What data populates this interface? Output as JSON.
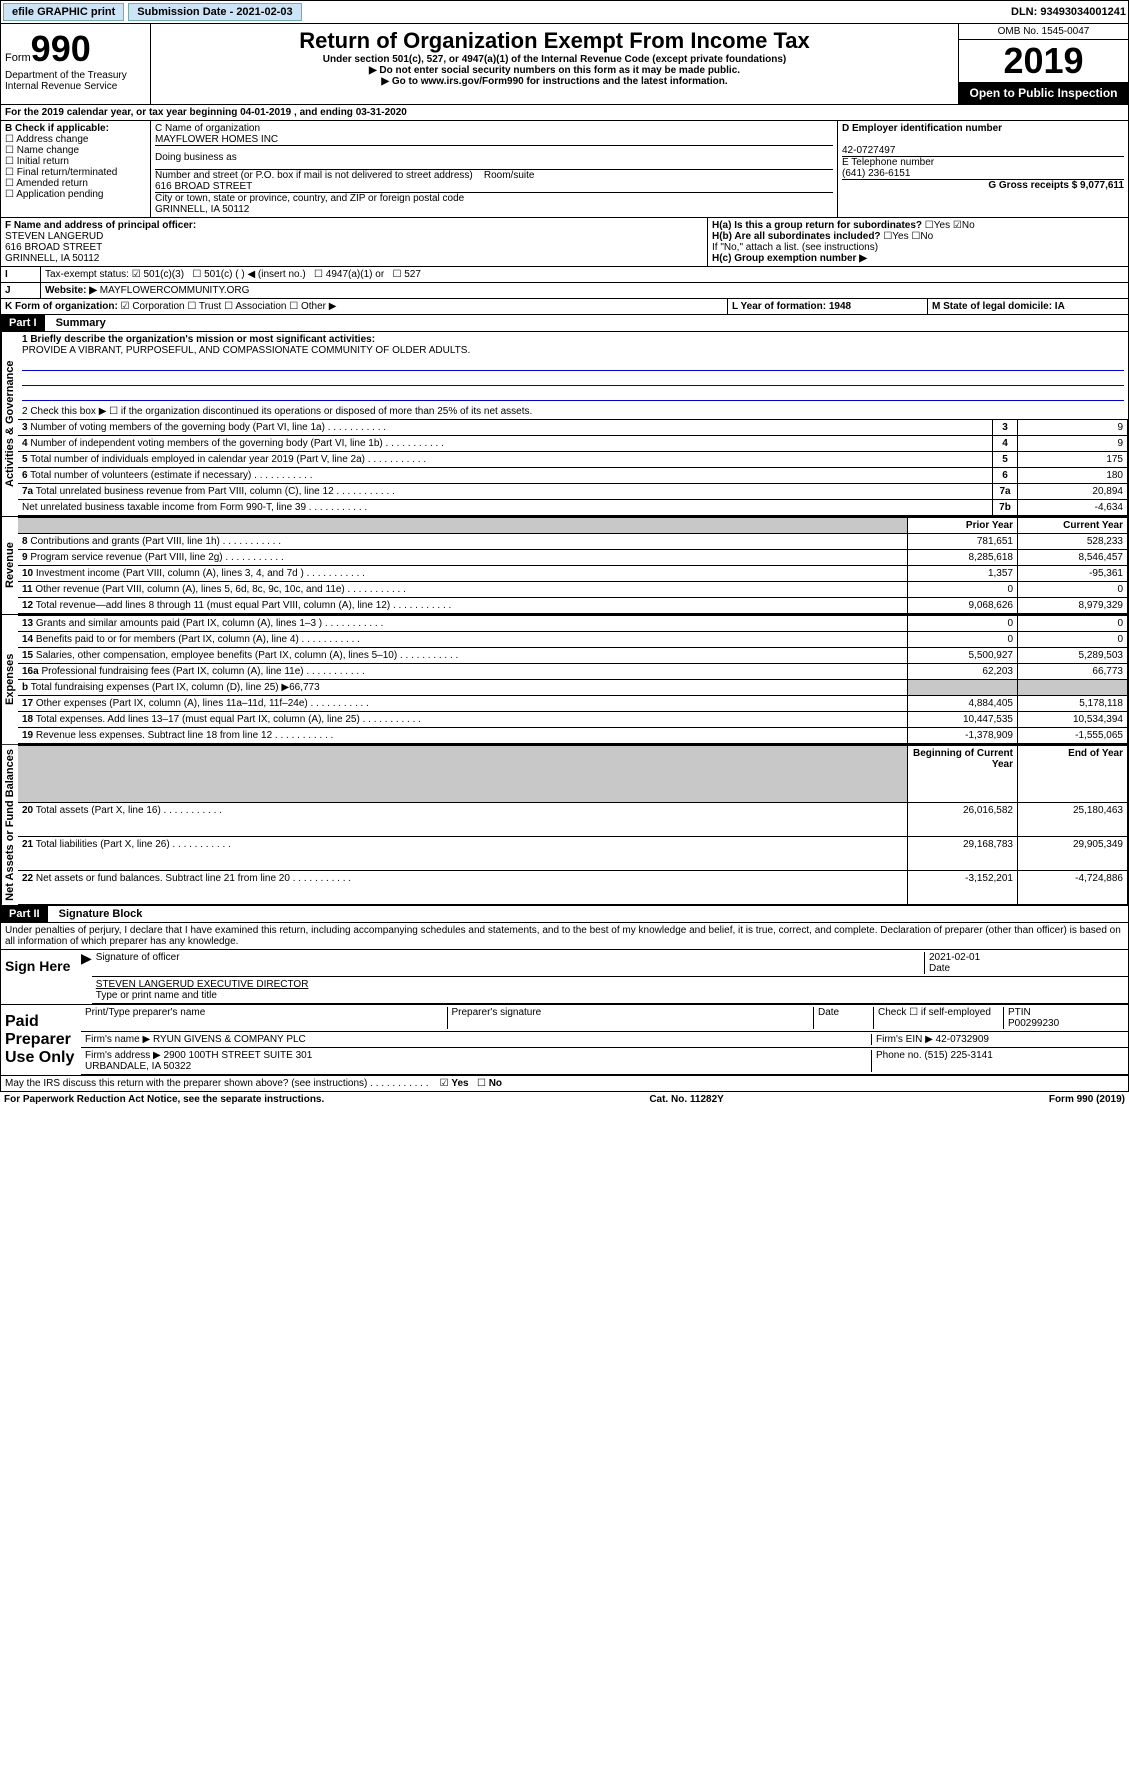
{
  "top": {
    "efile": "efile GRAPHIC print",
    "subdate_lbl": "Submission Date - 2021-02-03",
    "dln": "DLN: 93493034001241"
  },
  "header": {
    "form": "Form",
    "num": "990",
    "dept": "Department of the Treasury\nInternal Revenue Service",
    "title": "Return of Organization Exempt From Income Tax",
    "sub1": "Under section 501(c), 527, or 4947(a)(1) of the Internal Revenue Code (except private foundations)",
    "sub2": "▶ Do not enter social security numbers on this form as it may be made public.",
    "sub3": "▶ Go to www.irs.gov/Form990 for instructions and the latest information.",
    "omb": "OMB No. 1545-0047",
    "year": "2019",
    "open": "Open to Public Inspection"
  },
  "a": {
    "period": "For the 2019 calendar year, or tax year beginning 04-01-2019   , and ending 03-31-2020",
    "b_lbl": "B Check if applicable:",
    "b_opts": [
      "Address change",
      "Name change",
      "Initial return",
      "Final return/terminated",
      "Amended return",
      "Application pending"
    ],
    "c_lbl": "C Name of organization",
    "c_name": "MAYFLOWER HOMES INC",
    "dba_lbl": "Doing business as",
    "addr_lbl": "Number and street (or P.O. box if mail is not delivered to street address)",
    "addr": "616 BROAD STREET",
    "room_lbl": "Room/suite",
    "city_lbl": "City or town, state or province, country, and ZIP or foreign postal code",
    "city": "GRINNELL, IA  50112",
    "d_lbl": "D Employer identification number",
    "d_val": "42-0727497",
    "e_lbl": "E Telephone number",
    "e_val": "(641) 236-6151",
    "g_lbl": "G Gross receipts $ 9,077,611",
    "f_lbl": "F  Name and address of principal officer:",
    "f_name": "STEVEN LANGERUD",
    "f_addr": "616 BROAD STREET\nGRINNELL, IA  50112",
    "ha_lbl": "H(a)  Is this a group return for subordinates?",
    "hb_lbl": "H(b)  Are all subordinates included?",
    "hb_note": "If \"No,\" attach a list. (see instructions)",
    "hc_lbl": "H(c)  Group exemption number ▶",
    "yes": "Yes",
    "no": "No"
  },
  "i": {
    "lbl": "Tax-exempt status:",
    "opts": [
      "501(c)(3)",
      "501(c) (  ) ◀ (insert no.)",
      "4947(a)(1) or",
      "527"
    ]
  },
  "j": {
    "lbl": "Website: ▶",
    "val": "MAYFLOWERCOMMUNITY.ORG"
  },
  "k": {
    "lbl": "K Form of organization:",
    "opts": [
      "Corporation",
      "Trust",
      "Association",
      "Other ▶"
    ]
  },
  "l": {
    "lbl": "L Year of formation: 1948"
  },
  "m": {
    "lbl": "M State of legal domicile: IA"
  },
  "part1": {
    "title": "Part I",
    "sub": "Summary",
    "q1": "1  Briefly describe the organization's mission or most significant activities:",
    "a1": "PROVIDE A VIBRANT, PURPOSEFUL, AND COMPASSIONATE COMMUNITY OF OLDER ADULTS.",
    "q2": "2   Check this box ▶ ☐  if the organization discontinued its operations or disposed of more than 25% of its net assets.",
    "sections": {
      "gov": "Activities & Governance",
      "rev": "Revenue",
      "exp": "Expenses",
      "net": "Net Assets or Fund Balances"
    },
    "rows": [
      {
        "n": "3",
        "t": "Number of voting members of the governing body (Part VI, line 1a)",
        "l": "3",
        "v": "9"
      },
      {
        "n": "4",
        "t": "Number of independent voting members of the governing body (Part VI, line 1b)",
        "l": "4",
        "v": "9"
      },
      {
        "n": "5",
        "t": "Total number of individuals employed in calendar year 2019 (Part V, line 2a)",
        "l": "5",
        "v": "175"
      },
      {
        "n": "6",
        "t": "Total number of volunteers (estimate if necessary)",
        "l": "6",
        "v": "180"
      },
      {
        "n": "7a",
        "t": "Total unrelated business revenue from Part VIII, column (C), line 12",
        "l": "7a",
        "v": "20,894"
      },
      {
        "n": "",
        "t": "Net unrelated business taxable income from Form 990-T, line 39",
        "l": "7b",
        "v": "-4,634"
      }
    ],
    "hdr_prior": "Prior Year",
    "hdr_curr": "Current Year",
    "rows2": [
      {
        "n": "8",
        "t": "Contributions and grants (Part VIII, line 1h)",
        "p": "781,651",
        "c": "528,233"
      },
      {
        "n": "9",
        "t": "Program service revenue (Part VIII, line 2g)",
        "p": "8,285,618",
        "c": "8,546,457"
      },
      {
        "n": "10",
        "t": "Investment income (Part VIII, column (A), lines 3, 4, and 7d )",
        "p": "1,357",
        "c": "-95,361"
      },
      {
        "n": "11",
        "t": "Other revenue (Part VIII, column (A), lines 5, 6d, 8c, 9c, 10c, and 11e)",
        "p": "0",
        "c": "0"
      },
      {
        "n": "12",
        "t": "Total revenue—add lines 8 through 11 (must equal Part VIII, column (A), line 12)",
        "p": "9,068,626",
        "c": "8,979,329"
      },
      {
        "n": "13",
        "t": "Grants and similar amounts paid (Part IX, column (A), lines 1–3 )",
        "p": "0",
        "c": "0"
      },
      {
        "n": "14",
        "t": "Benefits paid to or for members (Part IX, column (A), line 4)",
        "p": "0",
        "c": "0"
      },
      {
        "n": "15",
        "t": "Salaries, other compensation, employee benefits (Part IX, column (A), lines 5–10)",
        "p": "5,500,927",
        "c": "5,289,503"
      },
      {
        "n": "16a",
        "t": "Professional fundraising fees (Part IX, column (A), line 11e)",
        "p": "62,203",
        "c": "66,773"
      },
      {
        "n": "b",
        "t": "Total fundraising expenses (Part IX, column (D), line 25) ▶66,773",
        "p": "",
        "c": "",
        "grey": true
      },
      {
        "n": "17",
        "t": "Other expenses (Part IX, column (A), lines 11a–11d, 11f–24e)",
        "p": "4,884,405",
        "c": "5,178,118"
      },
      {
        "n": "18",
        "t": "Total expenses. Add lines 13–17 (must equal Part IX, column (A), line 25)",
        "p": "10,447,535",
        "c": "10,534,394"
      },
      {
        "n": "19",
        "t": "Revenue less expenses. Subtract line 18 from line 12",
        "p": "-1,378,909",
        "c": "-1,555,065"
      }
    ],
    "hdr_beg": "Beginning of Current Year",
    "hdr_end": "End of Year",
    "rows3": [
      {
        "n": "20",
        "t": "Total assets (Part X, line 16)",
        "p": "26,016,582",
        "c": "25,180,463"
      },
      {
        "n": "21",
        "t": "Total liabilities (Part X, line 26)",
        "p": "29,168,783",
        "c": "29,905,349"
      },
      {
        "n": "22",
        "t": "Net assets or fund balances. Subtract line 21 from line 20",
        "p": "-3,152,201",
        "c": "-4,724,886"
      }
    ]
  },
  "part2": {
    "title": "Part II",
    "sub": "Signature Block",
    "decl": "Under penalties of perjury, I declare that I have examined this return, including accompanying schedules and statements, and to the best of my knowledge and belief, it is true, correct, and complete. Declaration of preparer (other than officer) is based on all information of which preparer has any knowledge.",
    "sign": "Sign Here",
    "sig_off": "Signature of officer",
    "sig_date": "2021-02-01",
    "date_lbl": "Date",
    "sig_name": "STEVEN LANGERUD  EXECUTIVE DIRECTOR",
    "sig_type": "Type or print name and title",
    "paid": "Paid Preparer Use Only",
    "prep_hdr": [
      "Print/Type preparer's name",
      "Preparer's signature",
      "Date"
    ],
    "ptin_lbl": "PTIN",
    "ptin": "P00299230",
    "check_lbl": "Check ☐ if self-employed",
    "firm_lbl": "Firm's name     ▶",
    "firm": "RYUN GIVENS & COMPANY PLC",
    "ein_lbl": "Firm's EIN ▶",
    "ein": "42-0732909",
    "faddr_lbl": "Firm's address ▶",
    "faddr": "2900 100TH STREET SUITE 301\nURBANDALE, IA  50322",
    "phone_lbl": "Phone no.",
    "phone": "(515) 225-3141",
    "discuss": "May the IRS discuss this return with the preparer shown above? (see instructions)"
  },
  "footer": {
    "left": "For Paperwork Reduction Act Notice, see the separate instructions.",
    "mid": "Cat. No. 11282Y",
    "right": "Form 990 (2019)"
  }
}
